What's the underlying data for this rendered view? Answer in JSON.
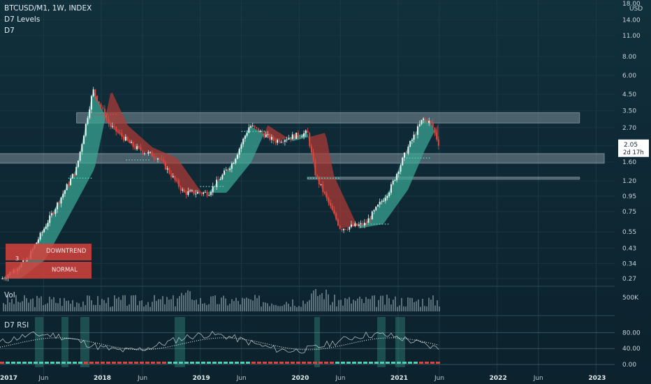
{
  "header": {
    "symbol_line": "BTCUSD/M1, 1W, INDEX",
    "indicator_1": "D7 Levels",
    "indicator_2": "D7"
  },
  "axis": {
    "currency": "USD",
    "price_ticks": [
      "18.00",
      "14.00",
      "11.00",
      "8.00",
      "6.00",
      "4.50",
      "3.50",
      "2.70",
      "2.05",
      "1.60",
      "1.20",
      "0.95",
      "0.75",
      "0.55",
      "0.43",
      "0.34",
      "0.27"
    ],
    "current_price": "2.05",
    "countdown": "2d 17h",
    "time_labels": [
      "2017",
      "Jun",
      "2018",
      "Jun",
      "2019",
      "Jun",
      "2020",
      "Jun",
      "2021",
      "Jun",
      "2022",
      "Jun",
      "2023"
    ]
  },
  "legend_box": {
    "label_1": "DOWNTREND",
    "label_2": "NORMAL",
    "number": "3"
  },
  "volume_pane": {
    "label": "Vol",
    "tick": "500K"
  },
  "rsi_pane": {
    "label": "D7 RSI",
    "ticks": [
      "80.00",
      "40.00",
      "0.00"
    ]
  },
  "colors": {
    "bull": "#4fd1b5",
    "bear": "#e0443c",
    "cloud_bull": "#3aa894",
    "cloud_bear": "#b03a34",
    "zone": "#c9d4d9"
  },
  "chart_data": {
    "type": "candlestick",
    "scale": "log",
    "ylim": [
      0.25,
      18
    ],
    "x_range": [
      "2016-12",
      "2023-03"
    ],
    "price_path": [
      [
        "2017-01",
        0.27
      ],
      [
        "2017-04",
        0.36
      ],
      [
        "2017-07",
        0.72
      ],
      [
        "2017-10",
        1.45
      ],
      [
        "2017-12",
        4.8
      ],
      [
        "2018-02",
        2.8
      ],
      [
        "2018-05",
        2.0
      ],
      [
        "2018-08",
        1.7
      ],
      [
        "2018-11",
        1.0
      ],
      [
        "2019-02",
        1.0
      ],
      [
        "2019-05",
        1.6
      ],
      [
        "2019-07",
        2.8
      ],
      [
        "2019-10",
        2.2
      ],
      [
        "2020-02",
        2.5
      ],
      [
        "2020-03",
        1.3
      ],
      [
        "2020-06",
        0.58
      ],
      [
        "2020-09",
        0.62
      ],
      [
        "2020-12",
        1.05
      ],
      [
        "2021-02",
        1.9
      ],
      [
        "2021-04",
        3.1
      ],
      [
        "2021-05",
        2.9
      ],
      [
        "2021-06",
        2.05
      ]
    ],
    "zones": [
      {
        "from": "2017-10",
        "to": "2022-11",
        "low": 2.9,
        "high": 3.4
      },
      {
        "from": "2016-12",
        "to": "2023-02",
        "low": 1.57,
        "high": 1.82
      },
      {
        "from": "2020-02",
        "to": "2022-11",
        "low": 1.24,
        "high": 1.27
      }
    ],
    "rsi": {
      "ylim": [
        0,
        100
      ],
      "levels": [
        80,
        40,
        0
      ]
    }
  }
}
